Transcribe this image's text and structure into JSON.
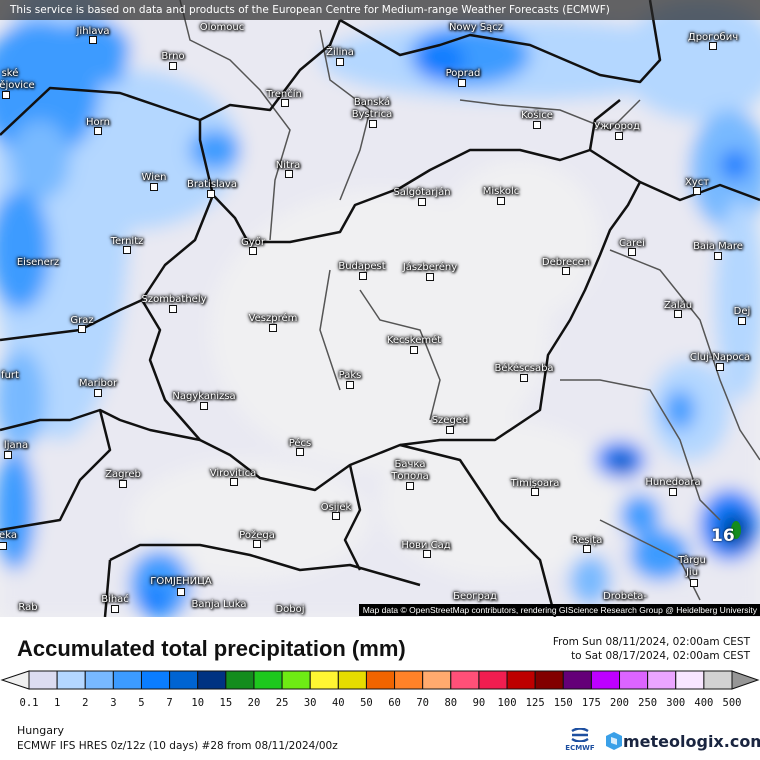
{
  "map": {
    "banner": "This service is based on data and products of the European Centre for Medium-range Weather Forecasts (ECMWF)",
    "attribution": "Map data © OpenStreetMap contributors, rendering GIScience Research Group @ Heidelberg University",
    "max_value_label": "16",
    "cities": [
      "Jihlava",
      "Brno",
      "Žilina",
      "Poprad",
      "Дрогобич",
      "ské",
      "ějovice",
      "Trenčín",
      "Banská",
      "Bystrica",
      "Košice",
      "Ужгород",
      "Horn",
      "Nitra",
      "Wien",
      "Bratislava",
      "Salgótarján",
      "Miskolc",
      "Хуст",
      "Ternitz",
      "Győr",
      "Carei",
      "Baia Mare",
      "Eisenerz",
      "Budapest",
      "Jászberény",
      "Debrecen",
      "Szombathely",
      "Graz",
      "Veszprém",
      "Zalău",
      "Dej",
      "Kecskemét",
      "Cluj-Napoca",
      "Maribor",
      "Paks",
      "Békéscsaba",
      "Nagykanizsa",
      "Szeged",
      "Pécs",
      "ljana",
      "Zagreb",
      "Virovitica",
      "Бачка",
      "Топола",
      "Timișoara",
      "Hunedoara",
      "Osijek",
      "Požega",
      "Нови Сад",
      "Reșița",
      "Târgu",
      "Jiu",
      "Bihać",
      "Banja Luka",
      "Doboj",
      "Београд",
      "Drobeta-",
      "eka",
      "ГОМЈЕНИЦА",
      "Rab",
      "Nowy Sącz",
      "Olomouc",
      "furt"
    ]
  },
  "header": {
    "title": "Accumulated total precipitation (mm)",
    "period_from": "From Sun 08/11/2024, 02:00am CEST",
    "period_to": "to Sat 08/17/2024, 02:00am CEST"
  },
  "legend": {
    "labels": [
      "0.1",
      "1",
      "2",
      "3",
      "5",
      "7",
      "10",
      "15",
      "20",
      "25",
      "30",
      "40",
      "50",
      "60",
      "70",
      "80",
      "90",
      "100",
      "125",
      "150",
      "175",
      "200",
      "250",
      "300",
      "400",
      "500"
    ],
    "colors": [
      "#dcdcf0",
      "#b4d7ff",
      "#78b9ff",
      "#3c9bff",
      "#0a7dff",
      "#0064d2",
      "#003282",
      "#148c1e",
      "#1ec81e",
      "#6eeb14",
      "#fff532",
      "#e6dc00",
      "#f06400",
      "#ff8228",
      "#ffaa6e",
      "#ff5078",
      "#f01e50",
      "#be0000",
      "#820000",
      "#640078",
      "#be00ff",
      "#dc64ff",
      "#eba5ff",
      "#f8e6ff",
      "#d2d2d2"
    ],
    "under_color": "#f0f0f0",
    "over_color": "#969696"
  },
  "footer": {
    "region": "Hungary",
    "model": "ECMWF IFS HRES 0z/12z (10 days) #28 from  08/11/2024/00z",
    "ecmwf_logo": "ECMWF",
    "brand": "meteologix.com"
  }
}
